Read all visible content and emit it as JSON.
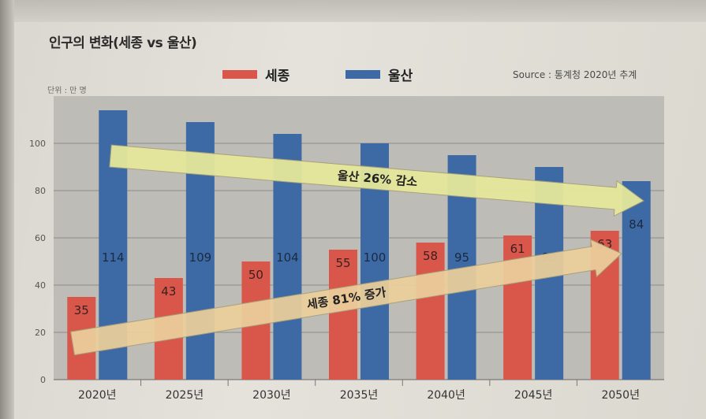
{
  "title": "인구의 변화(세종 vs 울산)",
  "unit": "단위 : 만 명",
  "source": "Source : 통계청 2020년 추계",
  "colors": {
    "sejong": "#d8574a",
    "ulsan": "#3d6aa4",
    "plot_bg": "#bdbcb7",
    "arrow_ulsan": "#e8e99a",
    "arrow_sejong": "#eccf9c"
  },
  "annotations": {
    "ulsan_arrow": "울산 26% 감소",
    "sejong_arrow": "세종 81% 증가"
  },
  "chart_data": {
    "type": "bar",
    "title": "인구의 변화(세종 vs 울산)",
    "categories": [
      "2020년",
      "2025년",
      "2030년",
      "2035년",
      "2040년",
      "2045년",
      "2050년"
    ],
    "series": [
      {
        "name": "세종",
        "values": [
          35,
          43,
          50,
          55,
          58,
          61,
          63
        ]
      },
      {
        "name": "울산",
        "values": [
          114,
          109,
          104,
          100,
          95,
          90,
          84
        ]
      }
    ],
    "yticks": [
      0,
      20,
      40,
      60,
      80,
      100
    ],
    "ylim": [
      0,
      120
    ],
    "grid": true,
    "legend": "top"
  }
}
